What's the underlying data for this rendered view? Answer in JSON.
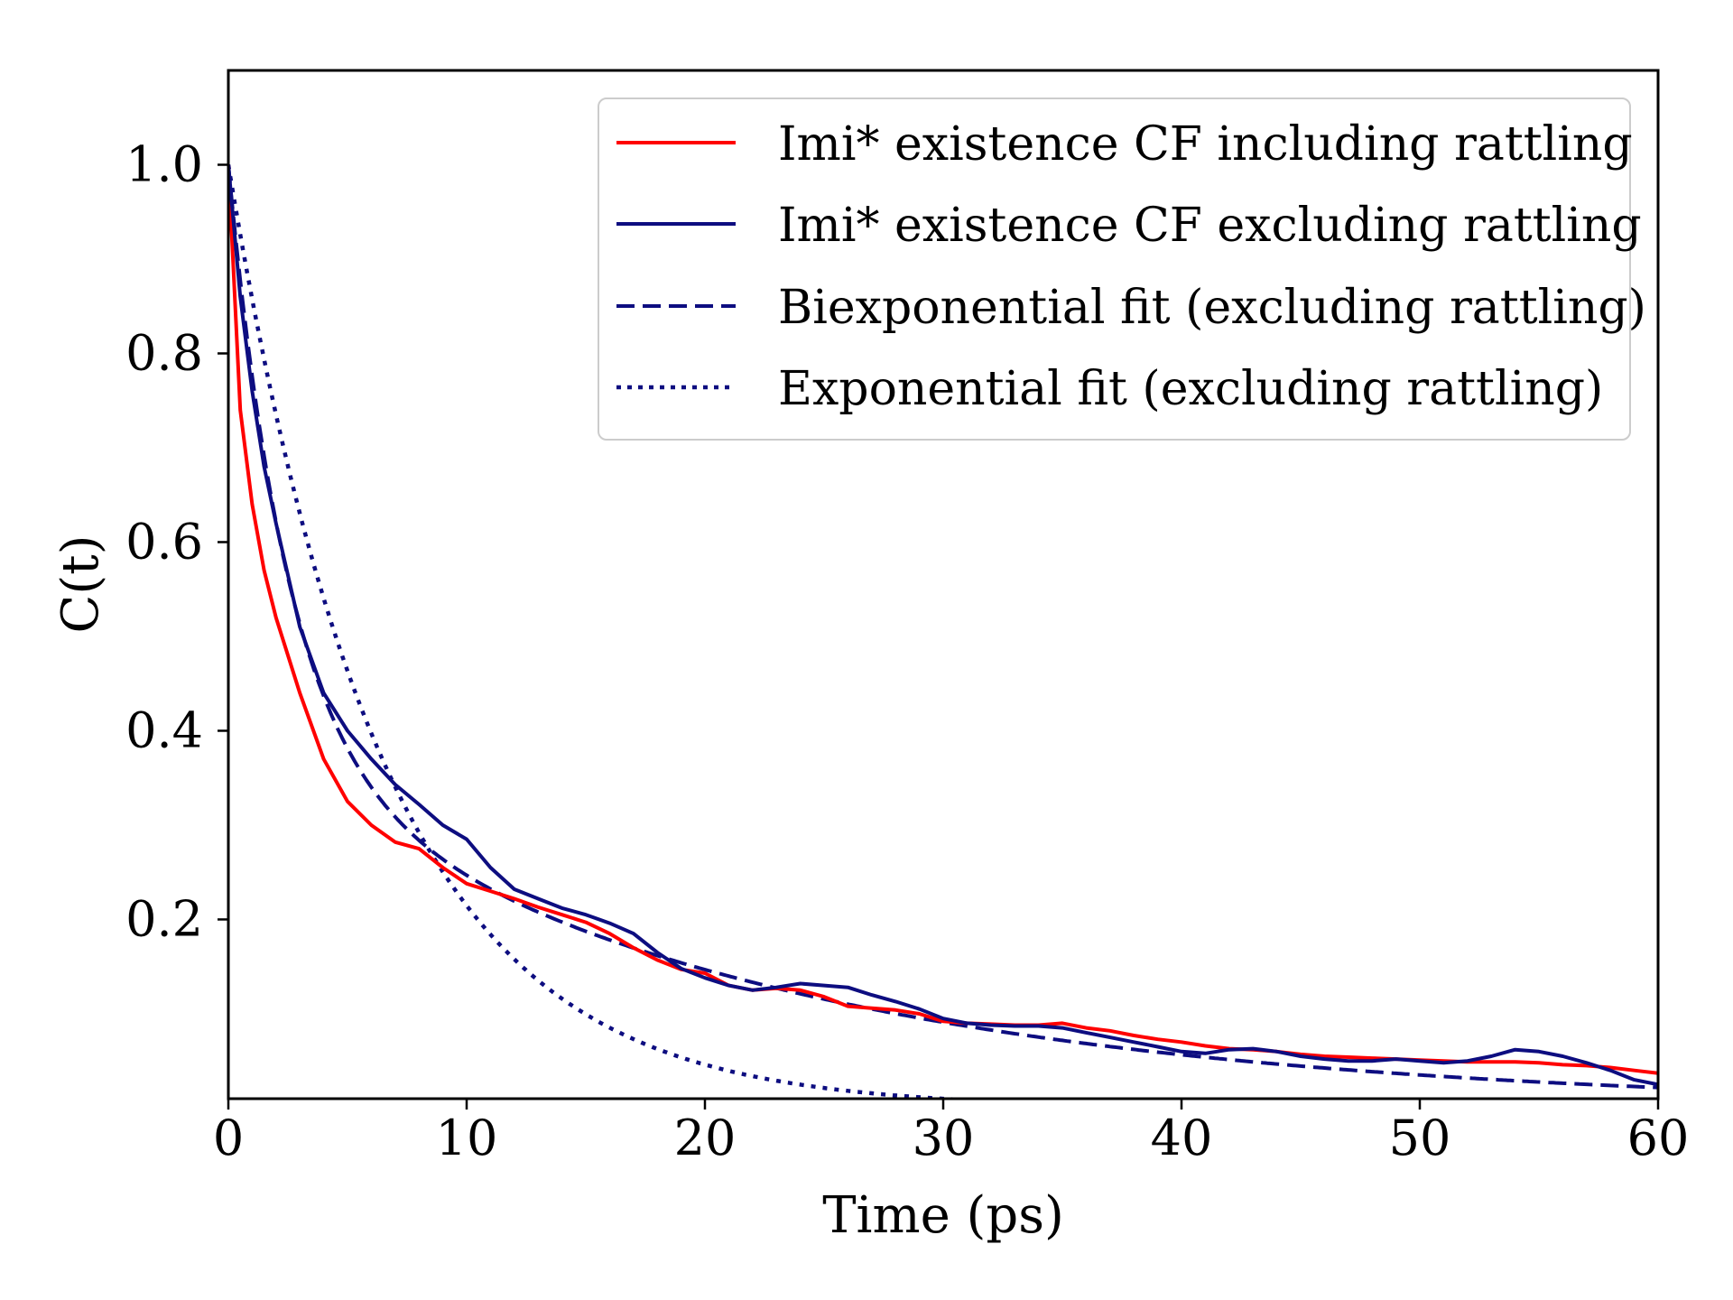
{
  "chart_data": {
    "type": "line",
    "title": "",
    "xlabel": "Time (ps)",
    "ylabel": "C(t)",
    "xlim": [
      0,
      60
    ],
    "ylim": [
      0.01,
      1.1
    ],
    "xticks": [
      0,
      10,
      20,
      30,
      40,
      50,
      60
    ],
    "xtick_labels": [
      "0",
      "10",
      "20",
      "30",
      "40",
      "50",
      "60"
    ],
    "yticks": [
      0.2,
      0.4,
      0.6,
      0.8,
      1.0
    ],
    "ytick_labels": [
      "0.2",
      "0.4",
      "0.6",
      "0.8",
      "1.0"
    ],
    "grid": false,
    "legend_position": "top-right",
    "series": [
      {
        "name": "Imi* existence CF including rattling",
        "color": "#ff0000",
        "style": "solid",
        "x": [
          0,
          0.5,
          1,
          1.5,
          2,
          3,
          4,
          5,
          6,
          7,
          8,
          9,
          10,
          11,
          12,
          13,
          14,
          15,
          16,
          17,
          18,
          19,
          20,
          21,
          22,
          23,
          24,
          25,
          26,
          27,
          28,
          29,
          30,
          31,
          32,
          33,
          34,
          35,
          36,
          37,
          38,
          39,
          40,
          41,
          42,
          43,
          44,
          45,
          46,
          47,
          48,
          49,
          50,
          51,
          52,
          53,
          54,
          55,
          56,
          57,
          58,
          59,
          60
        ],
        "y": [
          1.0,
          0.74,
          0.64,
          0.57,
          0.52,
          0.44,
          0.37,
          0.325,
          0.3,
          0.282,
          0.275,
          0.255,
          0.238,
          0.23,
          0.222,
          0.213,
          0.205,
          0.197,
          0.185,
          0.17,
          0.157,
          0.147,
          0.143,
          0.13,
          0.125,
          0.127,
          0.125,
          0.118,
          0.108,
          0.106,
          0.104,
          0.1,
          0.092,
          0.09,
          0.089,
          0.088,
          0.088,
          0.09,
          0.085,
          0.082,
          0.077,
          0.073,
          0.07,
          0.066,
          0.063,
          0.062,
          0.06,
          0.057,
          0.055,
          0.054,
          0.053,
          0.052,
          0.051,
          0.05,
          0.049,
          0.049,
          0.049,
          0.048,
          0.046,
          0.045,
          0.043,
          0.04,
          0.037
        ]
      },
      {
        "name": "Imi* existence CF excluding rattling",
        "color": "#0d0d80",
        "style": "solid",
        "x": [
          0,
          0.5,
          1,
          1.5,
          2,
          3,
          4,
          5,
          6,
          7,
          8,
          9,
          10,
          11,
          12,
          13,
          14,
          15,
          16,
          17,
          18,
          19,
          20,
          21,
          22,
          23,
          24,
          25,
          26,
          27,
          28,
          29,
          30,
          31,
          32,
          33,
          34,
          35,
          36,
          37,
          38,
          39,
          40,
          41,
          42,
          43,
          44,
          45,
          46,
          47,
          48,
          49,
          50,
          51,
          52,
          53,
          54,
          55,
          56,
          57,
          58,
          59,
          60
        ],
        "y": [
          1.0,
          0.86,
          0.76,
          0.68,
          0.62,
          0.51,
          0.44,
          0.4,
          0.37,
          0.343,
          0.322,
          0.3,
          0.285,
          0.255,
          0.232,
          0.222,
          0.212,
          0.205,
          0.196,
          0.185,
          0.165,
          0.148,
          0.138,
          0.13,
          0.125,
          0.128,
          0.132,
          0.13,
          0.128,
          0.12,
          0.113,
          0.105,
          0.095,
          0.09,
          0.088,
          0.087,
          0.087,
          0.085,
          0.08,
          0.075,
          0.07,
          0.065,
          0.06,
          0.058,
          0.062,
          0.063,
          0.06,
          0.055,
          0.052,
          0.05,
          0.05,
          0.052,
          0.05,
          0.048,
          0.05,
          0.055,
          0.062,
          0.06,
          0.055,
          0.048,
          0.04,
          0.03,
          0.025
        ]
      },
      {
        "name": "Biexponential fit (excluding rattling)",
        "color": "#0d0d80",
        "style": "dashed",
        "formula": {
          "type": "biexponential",
          "A1": 0.62,
          "tau1": 2.47,
          "A2": 0.38,
          "tau2": 21.0
        }
      },
      {
        "name": "Exponential fit (excluding rattling)",
        "color": "#0d0d80",
        "style": "dotted",
        "formula": {
          "type": "exponential",
          "A": 1.0,
          "tau": 6.5
        }
      }
    ]
  }
}
